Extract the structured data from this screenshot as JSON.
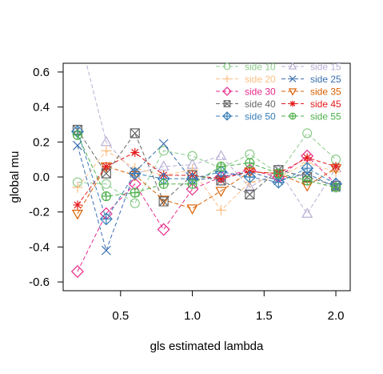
{
  "chart_data": {
    "type": "line",
    "xlabel": "gls estimated lambda",
    "ylabel": "global mu",
    "xlim": [
      0.1,
      2.1
    ],
    "ylim": [
      -0.65,
      0.65
    ],
    "xticks": [
      0.5,
      1.0,
      1.5,
      2.0
    ],
    "xtick_labels": [
      "0.5",
      "1.0",
      "1.5",
      "2.0"
    ],
    "yticks": [
      -0.6,
      -0.4,
      -0.2,
      0.0,
      0.2,
      0.4,
      0.6
    ],
    "ytick_labels": [
      "-0.6",
      "-0.4",
      "-0.2",
      "0.0",
      "0.2",
      "0.4",
      "0.6"
    ],
    "grid": false,
    "legend_position": "top-right",
    "x": [
      0.2,
      0.4,
      0.6,
      0.8,
      1.0,
      1.2,
      1.4,
      1.6,
      1.8,
      2.0
    ],
    "series": [
      {
        "name": "side 10",
        "color": "#8ccc8c",
        "marker": "circle",
        "values": [
          -0.03,
          -0.04,
          -0.15,
          0.15,
          0.12,
          0.05,
          0.13,
          0.02,
          0.25,
          0.1
        ]
      },
      {
        "name": "side 15",
        "color": "#b8aed4",
        "marker": "triangle",
        "values": [
          0.85,
          0.2,
          0.02,
          0.06,
          0.07,
          0.12,
          -0.06,
          0.04,
          -0.21,
          0.05
        ]
      },
      {
        "name": "side 20",
        "color": "#fdbf86",
        "marker": "plus",
        "values": [
          -0.06,
          0.15,
          0.05,
          0.01,
          0.04,
          -0.19,
          -0.03,
          0.0,
          0.08,
          0.03
        ]
      },
      {
        "name": "side 25",
        "color": "#3a6fb0",
        "marker": "x",
        "values": [
          0.18,
          -0.42,
          0.03,
          0.19,
          -0.02,
          0.0,
          0.03,
          -0.02,
          0.02,
          -0.06
        ]
      },
      {
        "name": "side 30",
        "color": "#e7298a",
        "marker": "diamond",
        "values": [
          -0.54,
          -0.21,
          -0.04,
          -0.3,
          -0.07,
          0.0,
          0.04,
          0.0,
          0.12,
          -0.04
        ]
      },
      {
        "name": "side 35",
        "color": "#d95f02",
        "marker": "triangle-down",
        "values": [
          -0.21,
          0.06,
          0.01,
          -0.13,
          -0.18,
          -0.08,
          0.03,
          0.02,
          -0.05,
          0.05
        ]
      },
      {
        "name": "side 40",
        "color": "#666666",
        "marker": "square-x",
        "values": [
          0.27,
          0.02,
          0.25,
          -0.14,
          0.01,
          -0.02,
          -0.1,
          0.04,
          0.0,
          -0.05
        ]
      },
      {
        "name": "side 45",
        "color": "#e41a1c",
        "marker": "star",
        "values": [
          -0.16,
          0.06,
          0.14,
          0.01,
          0.01,
          -0.01,
          0.03,
          0.02,
          0.11,
          0.06
        ]
      },
      {
        "name": "side 50",
        "color": "#377eb8",
        "marker": "diamond-plus",
        "values": [
          0.26,
          -0.24,
          0.02,
          -0.01,
          -0.01,
          0.03,
          0.0,
          -0.03,
          0.05,
          -0.04
        ]
      },
      {
        "name": "side 55",
        "color": "#4daf4a",
        "marker": "circle-plus",
        "values": [
          0.24,
          -0.11,
          -0.09,
          -0.04,
          -0.04,
          0.06,
          0.08,
          0.02,
          -0.02,
          -0.06
        ]
      }
    ]
  }
}
